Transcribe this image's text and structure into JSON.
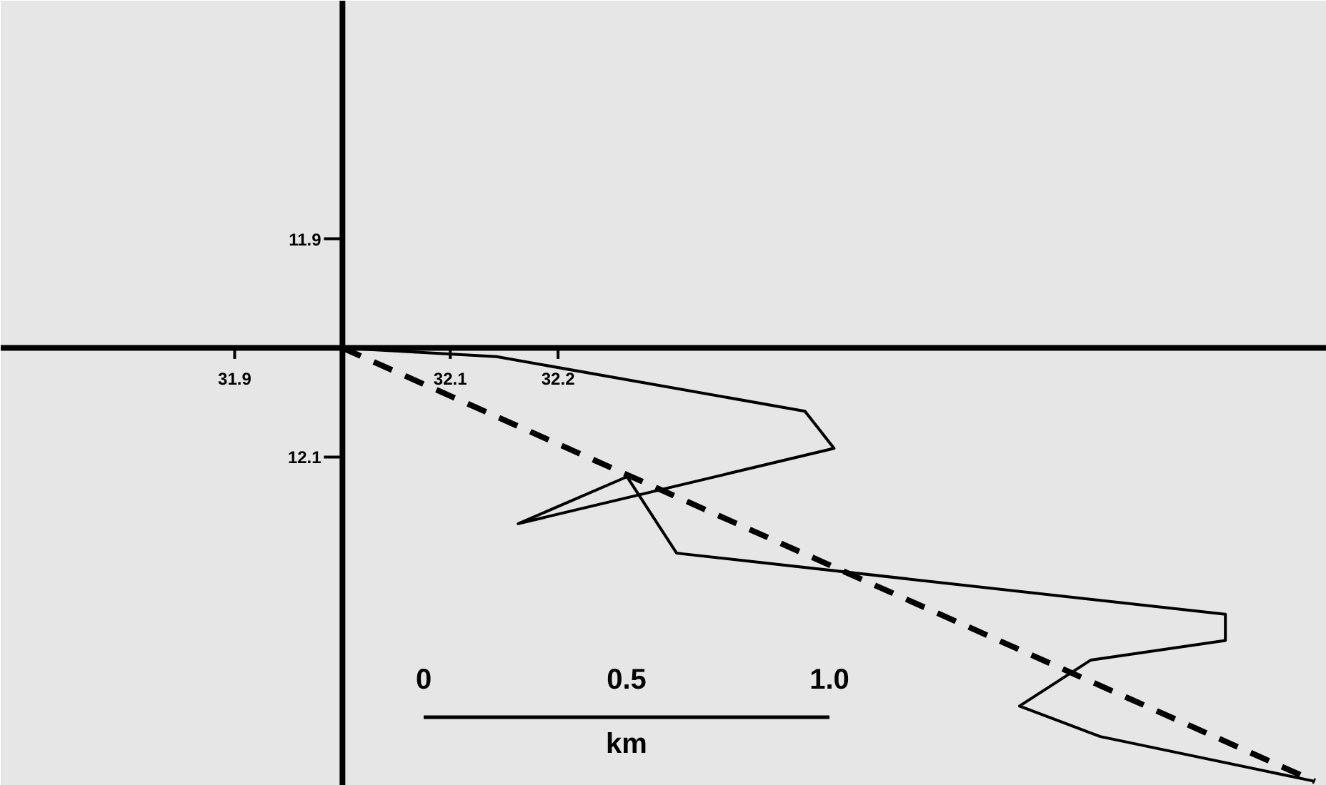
{
  "chart_data": {
    "type": "line",
    "xlim": [
      31.683,
      32.913
    ],
    "ylim": [
      12.401,
      11.682
    ],
    "xticks": [
      31.9,
      {
        "value": 32.0,
        "label": null
      },
      32.1,
      32.2
    ],
    "yticks": [
      11.9,
      {
        "value": 12.0,
        "label": null
      },
      12.1
    ],
    "series": [
      {
        "color": "#000000",
        "line_style": "solid",
        "x": [
          32.0,
          32.143,
          32.429,
          32.456,
          32.163,
          32.264,
          32.31,
          32.819,
          32.819,
          32.694,
          32.628,
          32.703,
          32.902
        ],
        "values": [
          12.0,
          12.008,
          12.058,
          12.092,
          12.161,
          12.118,
          12.188,
          12.244,
          12.268,
          12.286,
          12.328,
          12.356,
          12.397
        ]
      },
      {
        "color": "#000000",
        "line_style": "dashed",
        "x": [
          32.0,
          32.902
        ],
        "values": [
          12.0,
          12.397
        ]
      }
    ],
    "annotations": [
      "0",
      "0.5",
      "1.0",
      "km"
    ],
    "marker": "none"
  }
}
